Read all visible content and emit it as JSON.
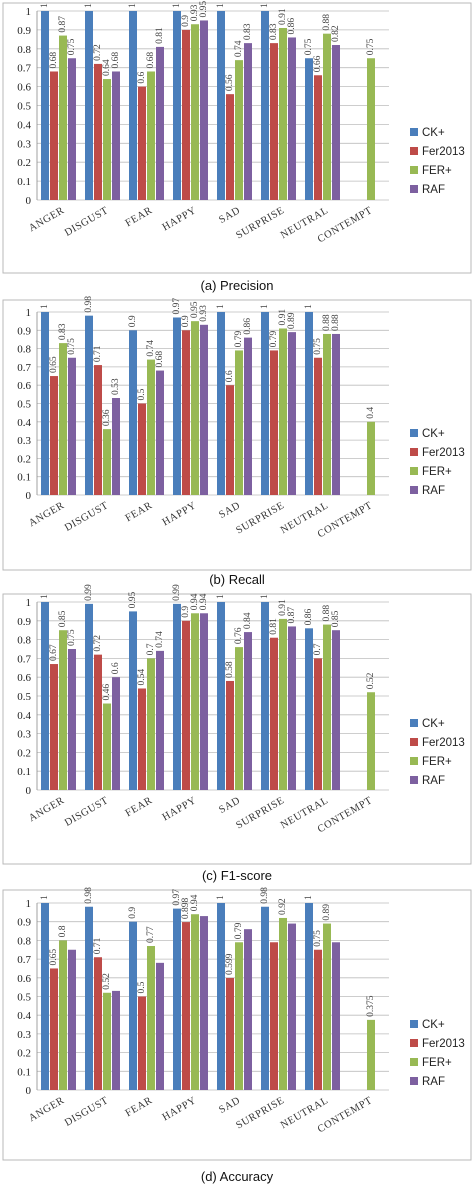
{
  "legend": [
    "CK+",
    "Fer2013",
    "FER+",
    "RAF"
  ],
  "colors": [
    "#4a7ebb",
    "#be4b48",
    "#98b954",
    "#7d60a0"
  ],
  "chart_data": [
    {
      "type": "bar",
      "title": "(a)  Precision",
      "categories": [
        "ANGER",
        "DISGUST",
        "FEAR",
        "HAPPY",
        "SAD",
        "SURPRISE",
        "NEUTRAL",
        "CONTEMPT"
      ],
      "ylim": [
        0,
        1
      ],
      "yticks": [
        "0",
        "0.1",
        "0.2",
        "0.3",
        "0.4",
        "0.5",
        "0.6",
        "0.7",
        "0.8",
        "0.9",
        "1"
      ],
      "grid": true,
      "legend_position": "right",
      "series": [
        {
          "name": "CK+",
          "values": [
            1,
            1,
            1,
            1,
            1,
            1,
            0.75,
            null
          ],
          "labels": [
            "1",
            "1",
            "1",
            "1",
            "1",
            "1",
            "0.75",
            ""
          ]
        },
        {
          "name": "Fer2013",
          "values": [
            0.68,
            0.72,
            0.6,
            0.9,
            0.56,
            0.83,
            0.66,
            null
          ],
          "labels": [
            "0.68",
            "0.72",
            "0.6",
            "0.9",
            "0.56",
            "0.83",
            "0.66",
            ""
          ]
        },
        {
          "name": "FER+",
          "values": [
            0.87,
            0.64,
            0.68,
            0.93,
            0.74,
            0.91,
            0.88,
            0.75
          ],
          "labels": [
            "0.87",
            "0.64",
            "0.68",
            "0.93",
            "0.74",
            "0.91",
            "0.88",
            "0.75"
          ]
        },
        {
          "name": "RAF",
          "values": [
            0.75,
            0.68,
            0.81,
            0.95,
            0.83,
            0.86,
            0.82,
            null
          ],
          "labels": [
            "0.75",
            "0.68",
            "0.81",
            "0.95",
            "0.83",
            "0.86",
            "0.82",
            ""
          ]
        }
      ]
    },
    {
      "type": "bar",
      "title": "(b) Recall",
      "categories": [
        "ANGER",
        "DISGUST",
        "FEAR",
        "HAPPY",
        "SAD",
        "SURPRISE",
        "NEUTRAL",
        "CONTEMPT"
      ],
      "ylim": [
        0,
        1
      ],
      "yticks": [
        "0",
        "0.1",
        "0.2",
        "0.3",
        "0.4",
        "0.5",
        "0.6",
        "0.7",
        "0.8",
        "0.9",
        "1"
      ],
      "grid": true,
      "legend_position": "right",
      "series": [
        {
          "name": "CK+",
          "values": [
            1,
            0.98,
            0.9,
            0.97,
            1,
            1,
            1,
            null
          ],
          "labels": [
            "1",
            "0.98",
            "0.9",
            "0.97",
            "1",
            "1",
            "1",
            ""
          ]
        },
        {
          "name": "Fer2013",
          "values": [
            0.65,
            0.71,
            0.5,
            0.9,
            0.6,
            0.79,
            0.75,
            null
          ],
          "labels": [
            "0.65",
            "0.71",
            "0.5",
            "0.9",
            "0.6",
            "0.79",
            "0.75",
            ""
          ]
        },
        {
          "name": "FER+",
          "values": [
            0.83,
            0.36,
            0.74,
            0.95,
            0.79,
            0.91,
            0.88,
            0.4
          ],
          "labels": [
            "0.83",
            "0.36",
            "0.74",
            "0.95",
            "0.79",
            "0.91",
            "0.88",
            "0.4"
          ]
        },
        {
          "name": "RAF",
          "values": [
            0.75,
            0.53,
            0.68,
            0.93,
            0.86,
            0.89,
            0.88,
            null
          ],
          "labels": [
            "0.75",
            "0.53",
            "0.68",
            "0.93",
            "0.86",
            "0.89",
            "0.88",
            ""
          ]
        }
      ]
    },
    {
      "type": "bar",
      "title": "(c) F1-score",
      "categories": [
        "ANGER",
        "DISGUST",
        "FEAR",
        "HAPPY",
        "SAD",
        "SURPRISE",
        "NEUTRAL",
        "CONTEMPT"
      ],
      "ylim": [
        0,
        1
      ],
      "yticks": [
        "0",
        "0.1",
        "0.2",
        "0.3",
        "0.4",
        "0.5",
        "0.6",
        "0.7",
        "0.8",
        "0.9",
        "1"
      ],
      "grid": true,
      "legend_position": "right",
      "series": [
        {
          "name": "CK+",
          "values": [
            1,
            0.99,
            0.95,
            0.99,
            1,
            1,
            0.86,
            null
          ],
          "labels": [
            "1",
            "0.99",
            "0.95",
            "0.99",
            "1",
            "1",
            "0.86",
            ""
          ]
        },
        {
          "name": "Fer2013",
          "values": [
            0.67,
            0.72,
            0.54,
            0.9,
            0.58,
            0.81,
            0.7,
            null
          ],
          "labels": [
            "0.67",
            "0.72",
            "0.54",
            "0.9",
            "0.58",
            "0.81",
            "0.7",
            ""
          ]
        },
        {
          "name": "FER+",
          "values": [
            0.85,
            0.46,
            0.7,
            0.94,
            0.76,
            0.91,
            0.88,
            0.52
          ],
          "labels": [
            "0.85",
            "0.46",
            "0.7",
            "0.94",
            "0.76",
            "0.91",
            "0.88",
            "0.52"
          ]
        },
        {
          "name": "RAF",
          "values": [
            0.75,
            0.6,
            0.74,
            0.94,
            0.84,
            0.87,
            0.85,
            null
          ],
          "labels": [
            "0.75",
            "0.6",
            "0.74",
            "0.94",
            "0.84",
            "0.87",
            "0.85",
            ""
          ]
        }
      ]
    },
    {
      "type": "bar",
      "title": "(d) Accuracy",
      "categories": [
        "ANGER",
        "DISGUST",
        "FEAR",
        "HAPPY",
        "SAD",
        "SURPRISE",
        "NEUTRAL",
        "CONTEMPT"
      ],
      "ylim": [
        0,
        1
      ],
      "yticks": [
        "0",
        "0.1",
        "0.2",
        "0.3",
        "0.4",
        "0.5",
        "0.6",
        "0.7",
        "0.8",
        "0.9",
        "1"
      ],
      "grid": true,
      "legend_position": "right",
      "series": [
        {
          "name": "CK+",
          "values": [
            1,
            0.98,
            0.9,
            0.97,
            1,
            0.98,
            1,
            null
          ],
          "labels": [
            "1",
            "0.98",
            "0.9",
            "0.97",
            "1",
            "0.98",
            "1",
            ""
          ]
        },
        {
          "name": "Fer2013",
          "values": [
            0.65,
            0.71,
            0.5,
            0.898,
            0.599,
            0.79,
            0.75,
            null
          ],
          "labels": [
            "0.65",
            "0.71",
            "0.5",
            "0.898",
            "0.599",
            "",
            "0.75",
            ""
          ]
        },
        {
          "name": "FER+",
          "values": [
            0.8,
            0.52,
            0.77,
            0.94,
            0.79,
            0.92,
            0.89,
            0.375
          ],
          "labels": [
            "0.8",
            "0.52",
            "0.77",
            "0.94",
            "0.79",
            "0.92",
            "0.89",
            "0.375"
          ]
        },
        {
          "name": "RAF",
          "values": [
            0.75,
            0.53,
            0.68,
            0.93,
            0.86,
            0.89,
            0.79,
            null
          ],
          "labels": [
            "",
            "",
            "",
            "",
            "",
            "",
            "",
            ""
          ]
        }
      ]
    }
  ]
}
